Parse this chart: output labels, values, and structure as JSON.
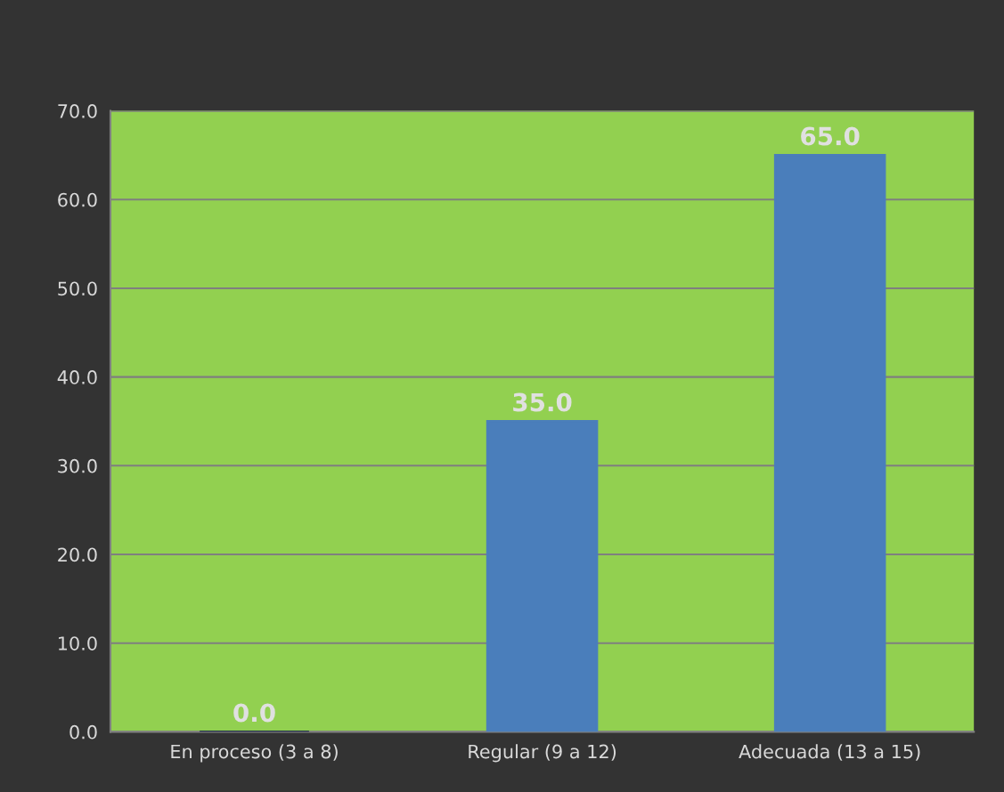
{
  "chart_data": {
    "type": "bar",
    "categories": [
      "En proceso (3 a 8)",
      "Regular (9 a 12)",
      "Adecuada (13 a 15)"
    ],
    "values": [
      0,
      35,
      65
    ],
    "value_labels": [
      "0.0",
      "35.0",
      "65.0"
    ],
    "colors": [
      "#1f2d45",
      "#4a7ebb",
      "#4a7ebb"
    ],
    "ylim": [
      0,
      70
    ],
    "yticks": [
      {
        "value": 0,
        "label": "0.0"
      },
      {
        "value": 10,
        "label": "10.0"
      },
      {
        "value": 20,
        "label": "20.0"
      },
      {
        "value": 30,
        "label": "30.0"
      },
      {
        "value": 40,
        "label": "40.0"
      },
      {
        "value": 50,
        "label": "50.0"
      },
      {
        "value": 60,
        "label": "60.0"
      },
      {
        "value": 70,
        "label": "70.0"
      }
    ],
    "grid": "y"
  }
}
